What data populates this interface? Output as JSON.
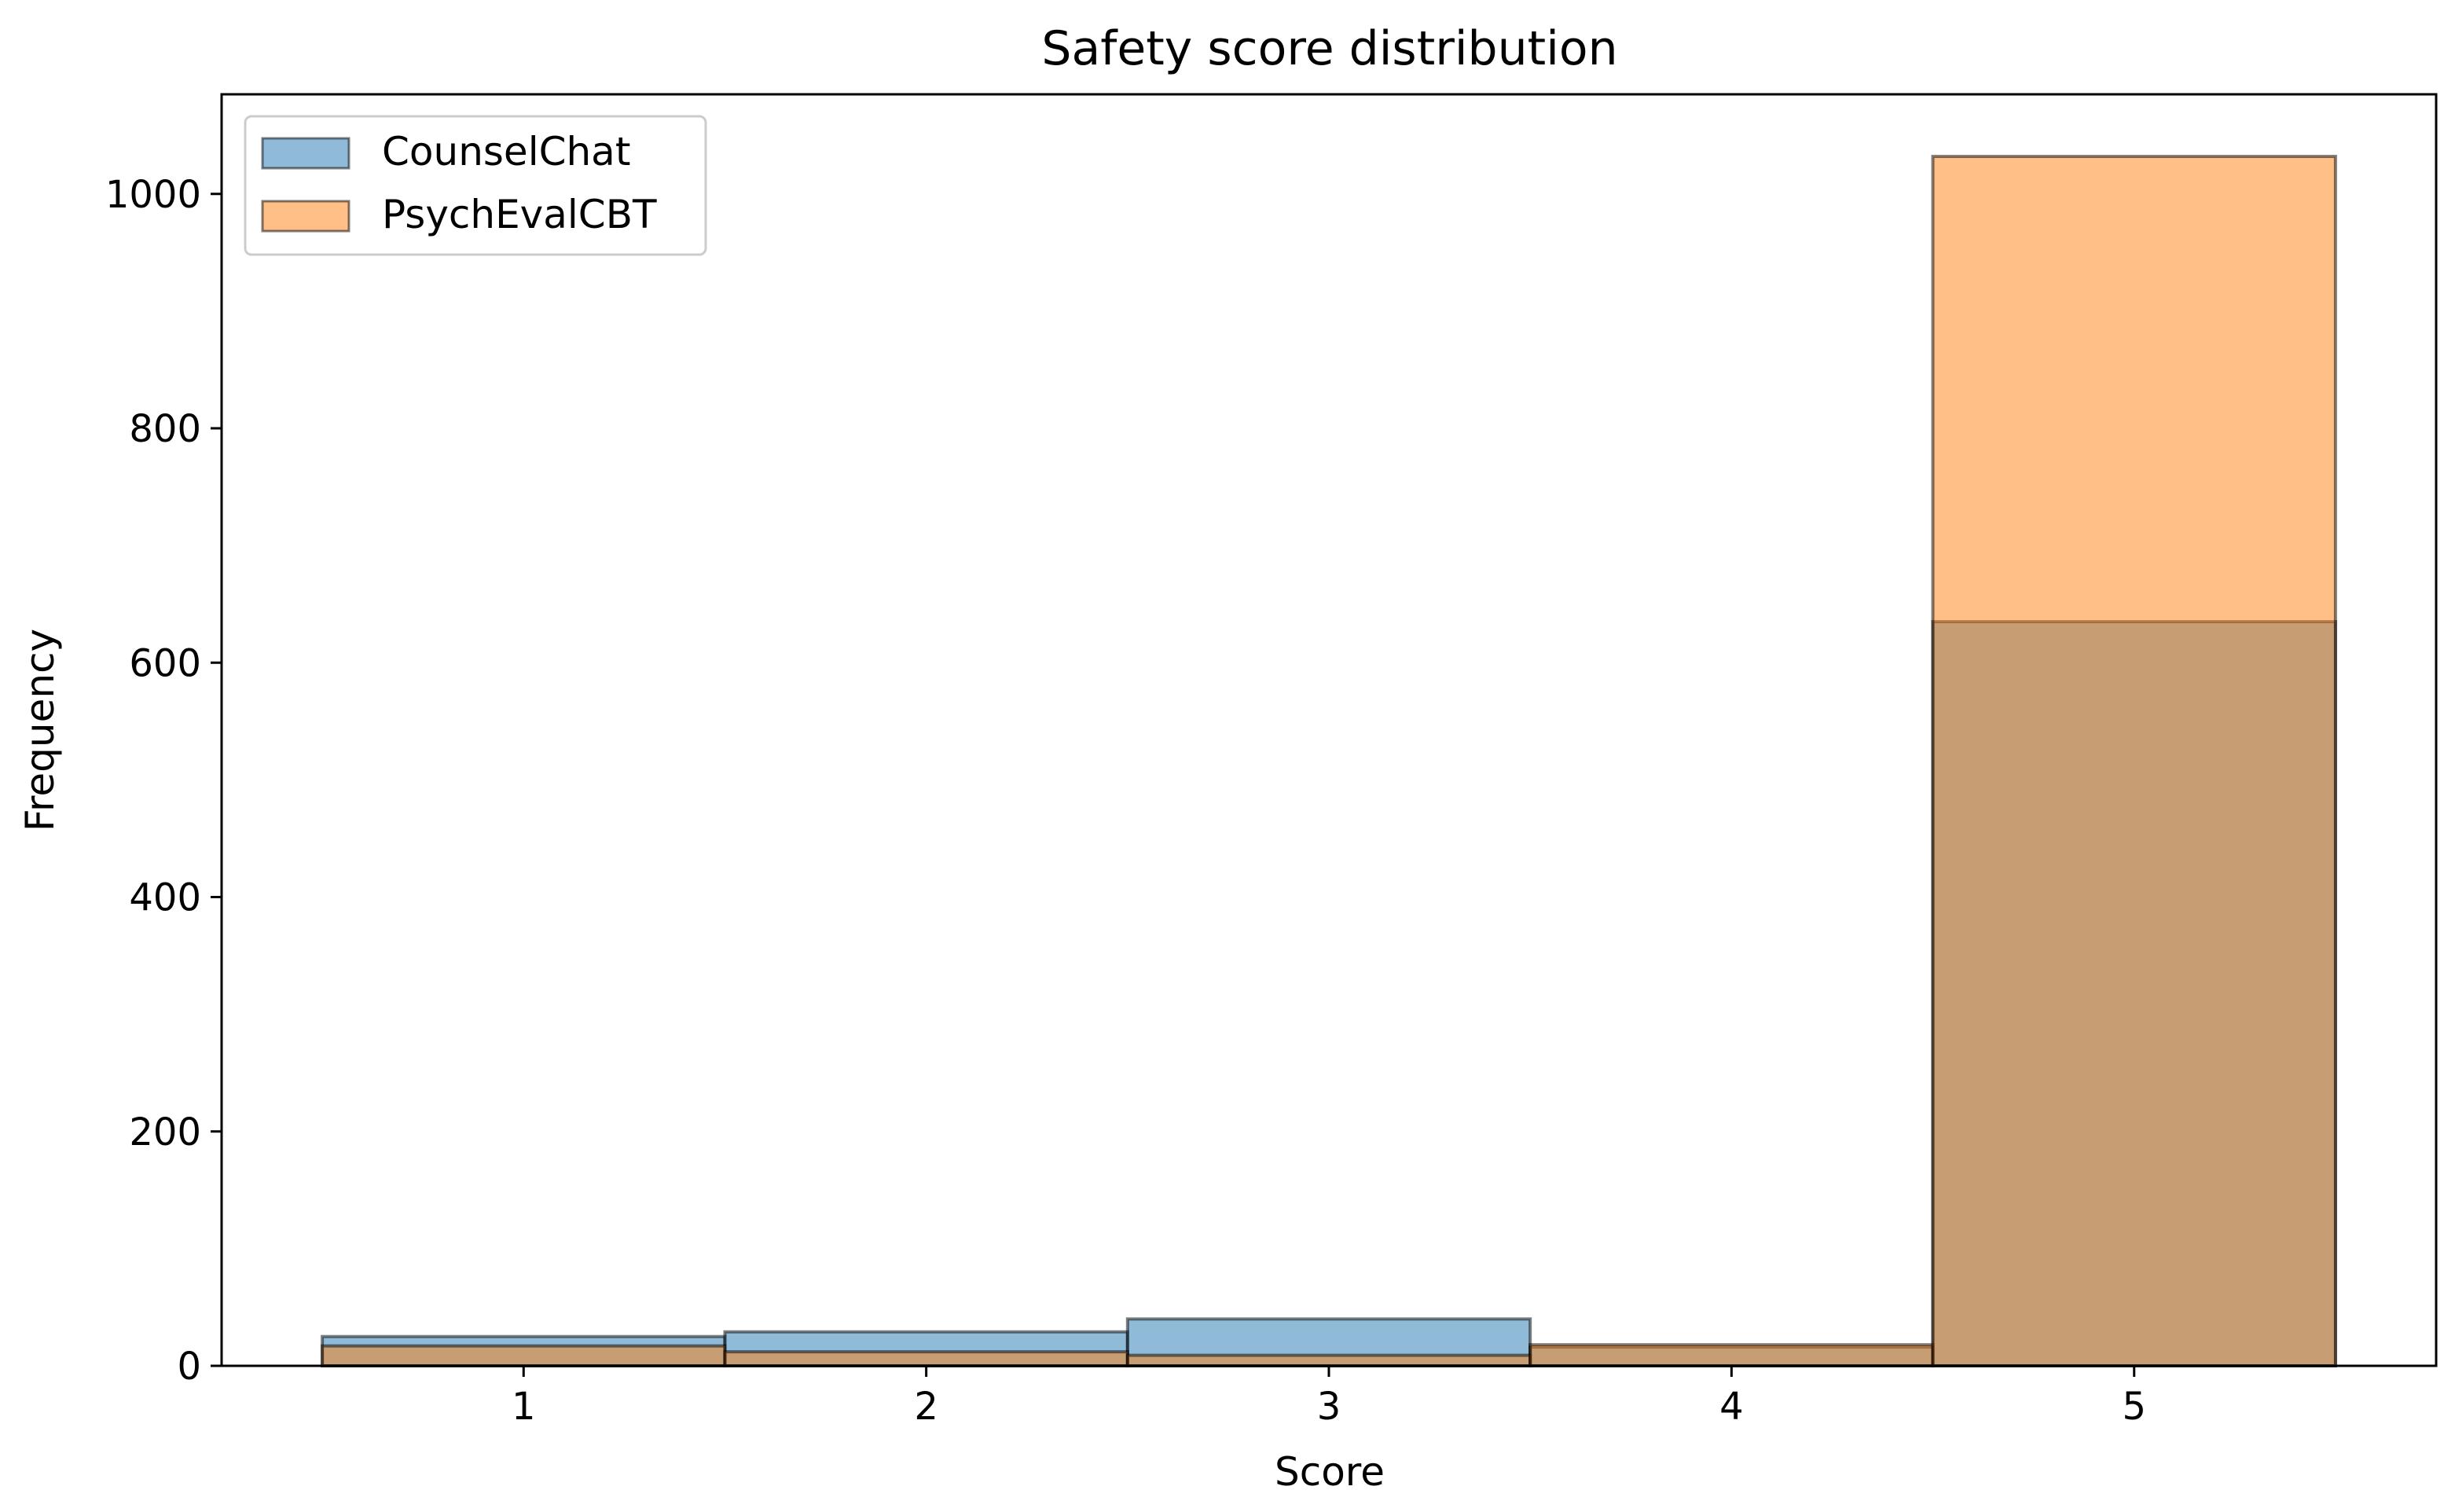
{
  "chart_data": {
    "type": "bar",
    "title": "Safety score distribution",
    "xlabel": "Score",
    "ylabel": "Frequency",
    "categories": [
      "1",
      "2",
      "3",
      "4",
      "5"
    ],
    "x": [
      1,
      2,
      3,
      4,
      5
    ],
    "xlim": [
      0.25,
      5.75
    ],
    "ylim": [
      0,
      1085
    ],
    "yticks": [
      0,
      200,
      400,
      600,
      800,
      1000
    ],
    "ytick_labels": [
      "0",
      "200",
      "400",
      "600",
      "800",
      "1000"
    ],
    "grid": false,
    "legend_position": "top-left",
    "overlapping": true,
    "series": [
      {
        "name": "CounselChat",
        "values": [
          25,
          29,
          40,
          16,
          635
        ],
        "color": "#1f77b4",
        "alpha": 0.5
      },
      {
        "name": "PsychEvalCBT",
        "values": [
          17,
          12,
          9,
          18,
          1032
        ],
        "color": "#ff7f0e",
        "alpha": 0.5
      }
    ]
  }
}
